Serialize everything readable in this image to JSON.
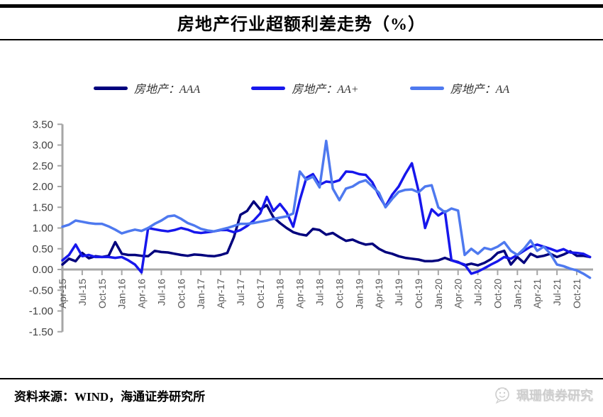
{
  "title": "房地产行业超额利差走势（%）",
  "footer": {
    "source": "资料来源：WIND，海通证券研究所",
    "watermark_text": "珮珊债券研究",
    "watermark_icon": "wechat-face-icon"
  },
  "colors": {
    "axis": "#a6a6a6",
    "y_label": "#404040",
    "x_label": "#595959",
    "title": "#000000",
    "divider": "#000000",
    "watermark": "#cdcdcd"
  },
  "chart_data": {
    "type": "line",
    "title": "房地产行业超额利差走势（%）",
    "unit": "%",
    "grid": false,
    "legend_position": "top",
    "ylim": [
      -1.5,
      3.5
    ],
    "y_ticks": [
      3.5,
      3.0,
      2.5,
      2.0,
      1.5,
      1.0,
      0.5,
      0.0,
      -0.5,
      -1.0,
      -1.5
    ],
    "y_tick_labels": [
      "3.50",
      "3.00",
      "2.50",
      "2.00",
      "1.50",
      "1.00",
      "0.50",
      "0.00",
      "-0.50",
      "-1.00",
      "-1.50"
    ],
    "x_tick_every": 3,
    "x": [
      "Apr-15",
      "May-15",
      "Jun-15",
      "Jul-15",
      "Aug-15",
      "Sep-15",
      "Oct-15",
      "Nov-15",
      "Dec-15",
      "Jan-16",
      "Feb-16",
      "Mar-16",
      "Apr-16",
      "May-16",
      "Jun-16",
      "Jul-16",
      "Aug-16",
      "Sep-16",
      "Oct-16",
      "Nov-16",
      "Dec-16",
      "Jan-17",
      "Feb-17",
      "Mar-17",
      "Apr-17",
      "May-17",
      "Jun-17",
      "Jul-17",
      "Aug-17",
      "Sep-17",
      "Oct-17",
      "Nov-17",
      "Dec-17",
      "Jan-18",
      "Feb-18",
      "Mar-18",
      "Apr-18",
      "May-18",
      "Jun-18",
      "Jul-18",
      "Aug-18",
      "Sep-18",
      "Oct-18",
      "Nov-18",
      "Dec-18",
      "Jan-19",
      "Feb-19",
      "Mar-19",
      "Apr-19",
      "May-19",
      "Jun-19",
      "Jul-19",
      "Aug-19",
      "Sep-19",
      "Oct-19",
      "Nov-19",
      "Dec-19",
      "Jan-20",
      "Feb-20",
      "Mar-20",
      "Apr-20",
      "May-20",
      "Jun-20",
      "Jul-20",
      "Aug-20",
      "Sep-20",
      "Oct-20",
      "Nov-20",
      "Dec-20",
      "Jan-21",
      "Feb-21",
      "Mar-21",
      "Apr-21",
      "May-21",
      "Jun-21",
      "Jul-21",
      "Aug-21",
      "Sep-21",
      "Oct-21",
      "Nov-21",
      "Dec-21"
    ],
    "series": [
      {
        "name": "房地产：AAA",
        "color": "#00007d",
        "values": [
          0.12,
          0.26,
          0.2,
          0.4,
          0.27,
          0.32,
          0.3,
          0.33,
          0.66,
          0.38,
          0.35,
          0.35,
          0.33,
          0.32,
          0.45,
          0.42,
          0.41,
          0.38,
          0.35,
          0.33,
          0.36,
          0.35,
          0.33,
          0.32,
          0.35,
          0.4,
          0.78,
          1.32,
          1.41,
          1.64,
          1.45,
          1.55,
          1.26,
          1.12,
          1.0,
          0.9,
          0.85,
          0.82,
          0.98,
          0.95,
          0.84,
          0.88,
          0.78,
          0.69,
          0.72,
          0.65,
          0.6,
          0.62,
          0.5,
          0.42,
          0.38,
          0.32,
          0.28,
          0.26,
          0.24,
          0.2,
          0.2,
          0.22,
          0.28,
          0.22,
          0.18,
          0.1,
          0.14,
          0.1,
          0.16,
          0.25,
          0.4,
          0.45,
          0.12,
          0.3,
          0.16,
          0.38,
          0.3,
          0.33,
          0.38,
          0.3,
          0.36,
          0.44,
          0.33,
          0.33,
          0.3
        ]
      },
      {
        "name": "房地产：AA+",
        "color": "#1717ec",
        "values": [
          0.22,
          0.35,
          0.6,
          0.32,
          0.35,
          0.3,
          0.3,
          0.3,
          0.28,
          0.3,
          0.22,
          0.12,
          -0.07,
          1.0,
          0.97,
          0.94,
          0.92,
          0.95,
          1.0,
          0.96,
          0.9,
          0.88,
          0.9,
          0.92,
          0.95,
          0.95,
          0.9,
          0.95,
          1.05,
          1.18,
          1.35,
          1.75,
          1.41,
          1.58,
          1.38,
          1.03,
          1.67,
          2.21,
          2.3,
          2.04,
          2.12,
          2.1,
          2.15,
          2.36,
          2.35,
          2.3,
          2.28,
          2.1,
          1.78,
          1.52,
          1.8,
          2.0,
          2.3,
          2.56,
          1.9,
          1.0,
          1.45,
          1.3,
          1.4,
          0.22,
          0.17,
          0.12,
          -0.1,
          -0.05,
          0.03,
          0.12,
          0.2,
          0.3,
          0.26,
          0.35,
          0.45,
          0.55,
          0.6,
          0.55,
          0.5,
          0.44,
          0.49,
          0.41,
          0.4,
          0.38,
          0.3
        ]
      },
      {
        "name": "房地产：AA",
        "color": "#4e79ef",
        "values": [
          1.03,
          1.08,
          1.18,
          1.15,
          1.12,
          1.1,
          1.1,
          1.04,
          0.96,
          0.87,
          0.92,
          0.96,
          0.93,
          1.0,
          1.1,
          1.18,
          1.28,
          1.3,
          1.22,
          1.12,
          1.06,
          0.98,
          0.94,
          0.92,
          0.96,
          1.0,
          1.05,
          1.1,
          1.1,
          1.12,
          1.15,
          1.18,
          1.22,
          1.25,
          1.28,
          1.35,
          2.36,
          2.16,
          2.24,
          1.98,
          3.1,
          1.95,
          1.67,
          1.95,
          2.0,
          2.1,
          2.15,
          2.0,
          1.85,
          1.5,
          1.7,
          1.87,
          1.92,
          1.93,
          1.86,
          2.0,
          2.03,
          1.5,
          1.38,
          1.47,
          1.42,
          0.35,
          0.5,
          0.38,
          0.52,
          0.48,
          0.55,
          0.66,
          0.45,
          0.35,
          0.5,
          0.7,
          0.45,
          0.55,
          0.38,
          0.12,
          0.08,
          0.02,
          -0.02,
          -0.1,
          -0.2
        ]
      }
    ]
  }
}
